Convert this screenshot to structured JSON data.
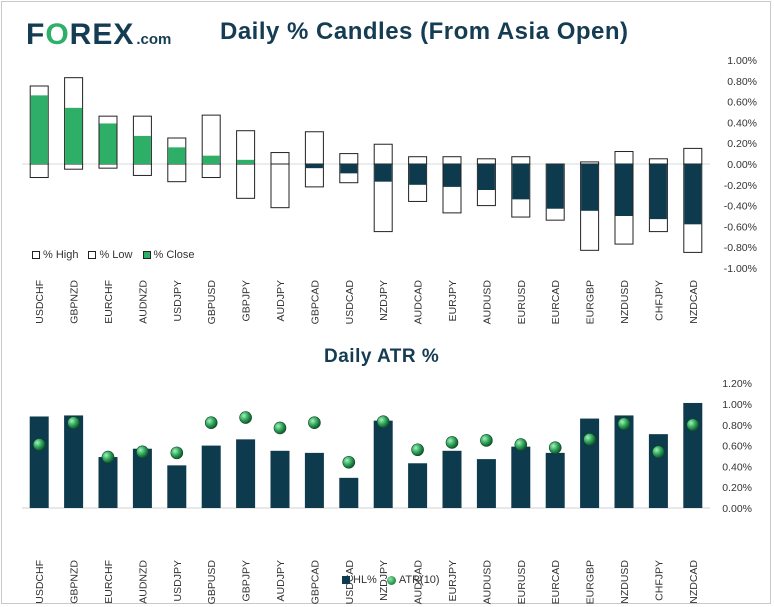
{
  "logo": {
    "part1": "F",
    "part2": "O",
    "part3": "REX",
    "suffix": ".com"
  },
  "title": "Daily % Candles (From Asia Open)",
  "atr_title": "Daily ATR %",
  "colors": {
    "navy": "#0e3a4d",
    "green": "#2eaf67",
    "title": "#153c52"
  },
  "legend_candles": [
    "% High",
    "% Low",
    "% Close"
  ],
  "legend_atr": [
    "HL%",
    "ATR(10)"
  ],
  "chart_data": [
    {
      "type": "candle",
      "title": "Daily % Candles (From Asia Open)",
      "categories": [
        "USDCHF",
        "GBPNZD",
        "EURCHF",
        "AUDNZD",
        "USDJPY",
        "GBPUSD",
        "GBPJPY",
        "AUDJPY",
        "GBPCAD",
        "USDCAD",
        "NZDJPY",
        "AUDCAD",
        "EURJPY",
        "AUDUSD",
        "EURUSD",
        "EURCAD",
        "EURGBP",
        "NZDUSD",
        "CHFJPY",
        "NZDCAD"
      ],
      "series": [
        {
          "name": "% High",
          "values": [
            0.75,
            0.83,
            0.46,
            0.46,
            0.25,
            0.47,
            0.32,
            0.11,
            0.31,
            0.1,
            0.19,
            0.07,
            0.07,
            0.05,
            0.07,
            0.0,
            0.02,
            0.12,
            0.05,
            0.15
          ]
        },
        {
          "name": "% Low",
          "values": [
            -0.13,
            -0.05,
            -0.04,
            -0.11,
            -0.17,
            -0.13,
            -0.33,
            -0.42,
            -0.22,
            -0.18,
            -0.65,
            -0.36,
            -0.47,
            -0.4,
            -0.51,
            -0.54,
            -0.83,
            -0.77,
            -0.65,
            -0.85
          ]
        },
        {
          "name": "% Close",
          "values": [
            0.66,
            0.54,
            0.39,
            0.27,
            0.16,
            0.08,
            0.04,
            0.0,
            -0.04,
            -0.09,
            -0.17,
            -0.2,
            -0.22,
            -0.25,
            -0.34,
            -0.43,
            -0.45,
            -0.5,
            -0.53,
            -0.58
          ]
        }
      ],
      "yticks": [
        "1.00%",
        "0.80%",
        "0.60%",
        "0.40%",
        "0.20%",
        "0.00%",
        "-0.20%",
        "-0.40%",
        "-0.60%",
        "-0.80%",
        "-1.00%"
      ],
      "ylim": [
        -1.0,
        1.0
      ],
      "legend_position": "bottom-left"
    },
    {
      "type": "bar",
      "title": "Daily ATR %",
      "categories": [
        "USDCHF",
        "GBPNZD",
        "EURCHF",
        "AUDNZD",
        "USDJPY",
        "GBPUSD",
        "GBPJPY",
        "AUDJPY",
        "GBPCAD",
        "USDCAD",
        "NZDJPY",
        "AUDCAD",
        "EURJPY",
        "AUDUSD",
        "EURUSD",
        "EURCAD",
        "EURGBP",
        "NZDUSD",
        "CHFJPY",
        "NZDCAD"
      ],
      "series": [
        {
          "name": "HL%",
          "type": "bar",
          "values": [
            0.88,
            0.89,
            0.49,
            0.57,
            0.41,
            0.6,
            0.66,
            0.55,
            0.53,
            0.29,
            0.84,
            0.43,
            0.55,
            0.47,
            0.59,
            0.53,
            0.86,
            0.89,
            0.71,
            1.01
          ]
        },
        {
          "name": "ATR(10)",
          "type": "scatter",
          "values": [
            0.61,
            0.82,
            0.49,
            0.54,
            0.53,
            0.82,
            0.87,
            0.77,
            0.82,
            0.44,
            0.83,
            0.56,
            0.63,
            0.65,
            0.61,
            0.58,
            0.66,
            0.81,
            0.54,
            0.8
          ]
        }
      ],
      "yticks": [
        "1.20%",
        "1.00%",
        "0.80%",
        "0.60%",
        "0.40%",
        "0.20%",
        "0.00%"
      ],
      "ylim": [
        0,
        1.2
      ],
      "legend_position": "bottom-center"
    }
  ]
}
